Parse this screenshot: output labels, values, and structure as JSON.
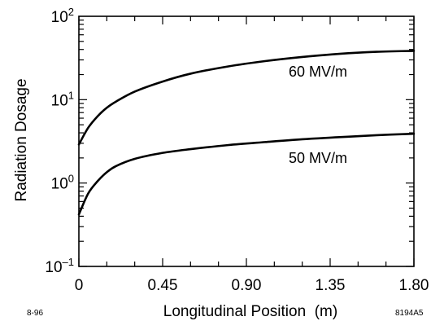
{
  "chart_data": {
    "type": "line",
    "xlabel": "Longitudinal Position  (m)",
    "ylabel": "Radiation Dosage",
    "xlim": [
      0,
      1.8
    ],
    "ylim": [
      0.1,
      100
    ],
    "yscale": "log",
    "grid": false,
    "x_ticks": [
      "0",
      "0.45",
      "0.90",
      "1.35",
      "1.80"
    ],
    "x_tick_values": [
      0,
      0.45,
      0.9,
      1.35,
      1.8
    ],
    "y_ticks": [
      {
        "base": "10",
        "exp": "2"
      },
      {
        "base": "10",
        "exp": "1"
      },
      {
        "base": "10",
        "exp": "0"
      },
      {
        "base": "10",
        "exp": "–1"
      }
    ],
    "y_tick_values": [
      100,
      10,
      1,
      0.1
    ],
    "series": [
      {
        "label": "60 MV/m",
        "x": [
          0,
          0.05,
          0.1,
          0.15,
          0.2,
          0.3,
          0.45,
          0.6,
          0.8,
          1.0,
          1.2,
          1.4,
          1.6,
          1.8
        ],
        "y": [
          2.9,
          4.6,
          6.3,
          8.0,
          9.5,
          12.5,
          16.5,
          20.5,
          25.0,
          29.0,
          32.5,
          35.5,
          37.5,
          38.5
        ]
      },
      {
        "label": "50 MV/m",
        "x": [
          0,
          0.05,
          0.1,
          0.15,
          0.2,
          0.3,
          0.45,
          0.6,
          0.8,
          1.0,
          1.2,
          1.4,
          1.6,
          1.8
        ],
        "y": [
          0.42,
          0.75,
          1.05,
          1.35,
          1.6,
          1.95,
          2.3,
          2.55,
          2.85,
          3.1,
          3.35,
          3.55,
          3.75,
          3.9
        ]
      }
    ],
    "annotations": [
      "60 MV/m",
      "50 MV/m"
    ],
    "corner_left": "8-96",
    "corner_right": "8194A5"
  }
}
